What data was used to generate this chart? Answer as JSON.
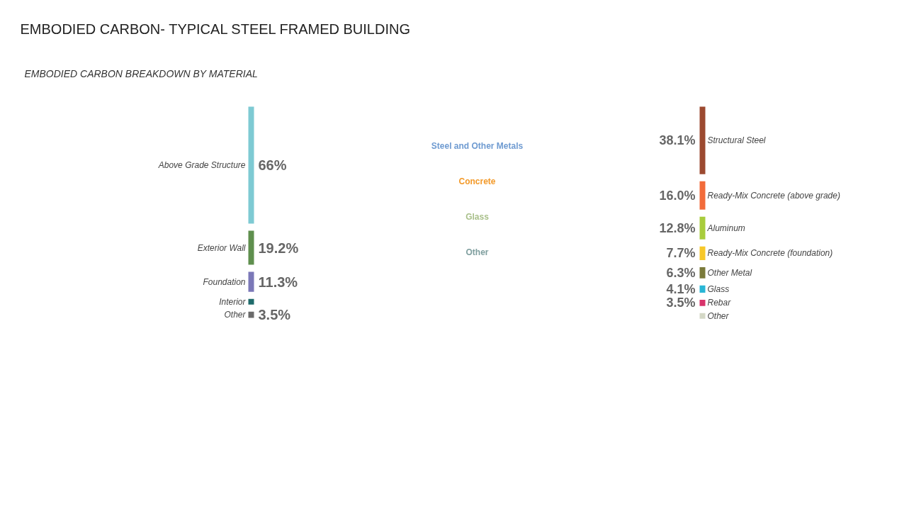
{
  "chart_data": [
    {
      "type": "other",
      "title": "EMBODIED CARBON- TYPICAL STEEL FRAMED BUILDING",
      "subtitle": "EMBODIED CARBON BREAKDOWN BY MATERIAL",
      "categories": [
        "Above Grade Structure",
        "Exterior Wall",
        "Foundation",
        "Interior",
        "Other"
      ],
      "values": [
        66,
        19.2,
        11.3,
        null,
        3.5
      ],
      "value_labels": [
        "66%",
        "19.2%",
        "11.3%",
        null,
        "3.5%"
      ],
      "colors": [
        "#7ecad3",
        "#5f8f4e",
        "#7b78b8",
        "#1f6b6b",
        "#6b6b6b"
      ]
    },
    {
      "type": "other",
      "categories": [
        "Steel and Other Metals",
        "Concrete",
        "Glass",
        "Other"
      ],
      "colors": [
        "#6f9bd1",
        "#f39a2a",
        "#a9c08a",
        "#7f9f9f"
      ]
    },
    {
      "type": "other",
      "categories": [
        "Structural Steel",
        "Ready-Mix Concrete (above grade)",
        "Aluminum",
        "Ready-Mix Concrete (foundation)",
        "Other Metal",
        "Glass",
        "Rebar",
        "Other"
      ],
      "values": [
        38.1,
        16.0,
        12.8,
        7.7,
        6.3,
        4.1,
        3.5,
        null
      ],
      "value_labels": [
        "38.1%",
        "16.0%",
        "12.8%",
        "7.7%",
        "6.3%",
        "4.1%",
        "3.5%",
        null
      ],
      "colors": [
        "#9c4a30",
        "#f26b3a",
        "#a8cc3c",
        "#f7c82a",
        "#7a7a3a",
        "#29b6d6",
        "#d8336b",
        "#d4d8c6"
      ]
    }
  ]
}
